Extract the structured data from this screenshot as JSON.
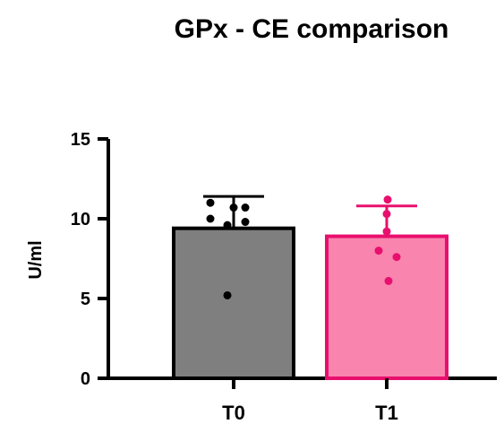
{
  "chart_data": {
    "type": "bar",
    "title": "GPx - CE comparison",
    "xlabel": "",
    "ylabel": "U/ml",
    "ylim": [
      0,
      15
    ],
    "yticks": [
      "0",
      "5",
      "10",
      "15"
    ],
    "categories": [
      "T0",
      "T1"
    ],
    "values": [
      9.4,
      8.9
    ],
    "error_bars": [
      2.0,
      1.9
    ],
    "points": [
      [
        11.0,
        10.7,
        10.7,
        10.0,
        9.6,
        9.8,
        5.2
      ],
      [
        11.2,
        10.3,
        9.2,
        8.0,
        7.6,
        6.1
      ]
    ],
    "bar_fills": [
      "#7f7f7f",
      "#f984ae"
    ],
    "bar_strokes": [
      "#000000",
      "#e8106e"
    ],
    "point_colors": [
      "#000000",
      "#e8106e"
    ],
    "grid": false,
    "legend": "none"
  }
}
